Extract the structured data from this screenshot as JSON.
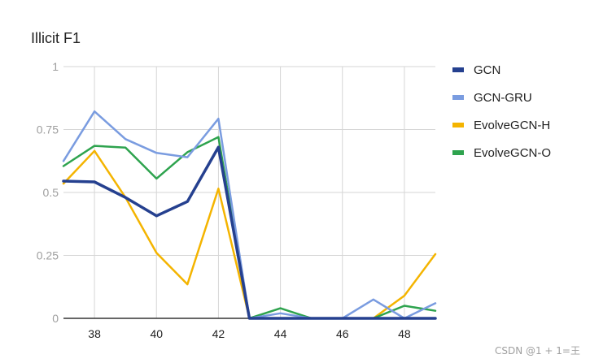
{
  "chart_data": {
    "type": "line",
    "title": "Illicit F1",
    "xlabel": "",
    "ylabel": "",
    "x": [
      37,
      38,
      39,
      40,
      41,
      42,
      43,
      44,
      45,
      46,
      47,
      48,
      49
    ],
    "xlim": [
      37,
      49
    ],
    "ylim": [
      0,
      1
    ],
    "x_ticks": [
      38,
      40,
      42,
      44,
      46,
      48
    ],
    "y_ticks": [
      0,
      0.25,
      0.5,
      0.75,
      1
    ],
    "x_tick_labels": [
      "38",
      "40",
      "42",
      "44",
      "46",
      "48"
    ],
    "y_tick_labels": [
      "0",
      "0.25",
      "0.5",
      "0.75",
      "1"
    ],
    "grid": true,
    "legend_position": "right",
    "series": [
      {
        "name": "GCN",
        "color": "#25408f",
        "values": [
          0.545,
          0.542,
          0.48,
          0.407,
          0.464,
          0.68,
          0.0,
          0.0,
          0.0,
          0.0,
          0.0,
          0.0,
          0.0
        ]
      },
      {
        "name": "GCN-GRU",
        "color": "#7a9ce0",
        "values": [
          0.625,
          0.822,
          0.712,
          0.657,
          0.64,
          0.793,
          0.0,
          0.02,
          0.0,
          0.0,
          0.075,
          0.0,
          0.06
        ]
      },
      {
        "name": "EvolveGCN-H",
        "color": "#f4b400",
        "values": [
          0.535,
          0.665,
          0.48,
          0.26,
          0.135,
          0.515,
          0.0,
          0.0,
          0.0,
          0.0,
          0.0,
          0.09,
          0.255
        ]
      },
      {
        "name": "EvolveGCN-O",
        "color": "#2ea34e",
        "values": [
          0.605,
          0.685,
          0.678,
          0.555,
          0.66,
          0.72,
          0.0,
          0.04,
          0.0,
          0.0,
          0.0,
          0.05,
          0.03
        ]
      }
    ]
  },
  "watermark": "CSDN @1 + 1=王"
}
